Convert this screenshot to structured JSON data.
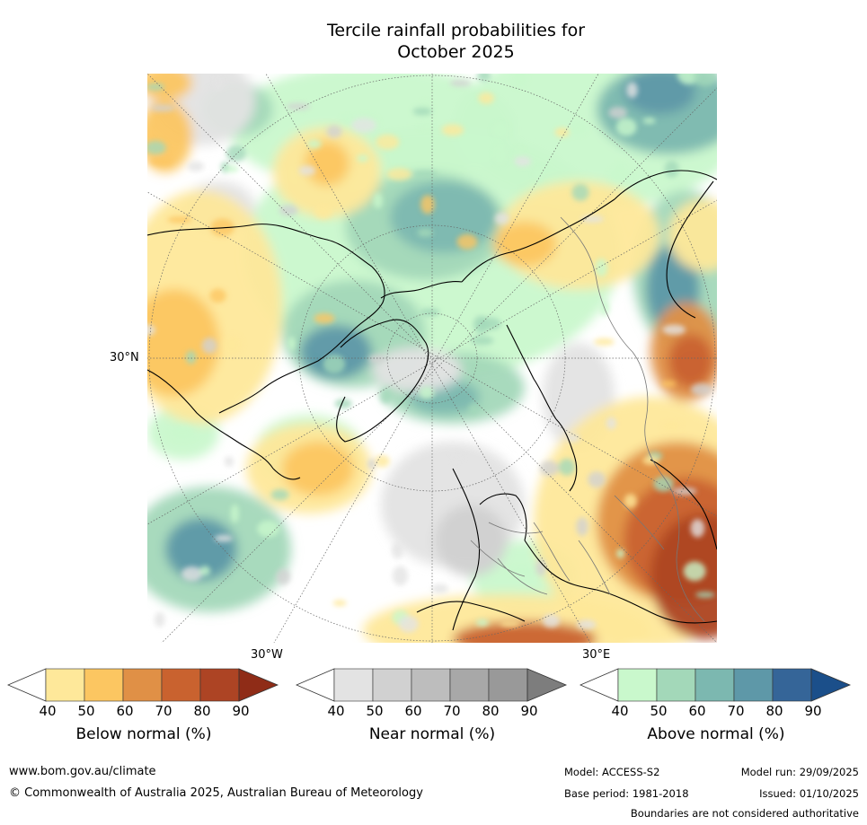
{
  "title_line1": "Tercile rainfall probabilities for",
  "title_line2": "October 2025",
  "map": {
    "lat_label": "30°N",
    "lon_label_left": "30°W",
    "lon_label_right": "30°E",
    "colors": {
      "below": [
        "#ffffff",
        "#fee89a",
        "#fcc661",
        "#e09046",
        "#c9622f",
        "#ad4424",
        "#8f2c17"
      ],
      "near": [
        "#ffffff",
        "#e3e3e3",
        "#d1d1d1",
        "#bdbdbd",
        "#a8a8a8",
        "#999999",
        "#7d7d7d"
      ],
      "above": [
        "#ffffff",
        "#c9f8cc",
        "#a3d8b9",
        "#7cb8b0",
        "#5e98a8",
        "#356598",
        "#1b4f8a"
      ]
    }
  },
  "colorbars": [
    {
      "label": "Below normal (%)",
      "ticks": [
        "40",
        "50",
        "60",
        "70",
        "80",
        "90"
      ]
    },
    {
      "label": "Near normal (%)",
      "ticks": [
        "40",
        "50",
        "60",
        "70",
        "80",
        "90"
      ]
    },
    {
      "label": "Above normal (%)",
      "ticks": [
        "40",
        "50",
        "60",
        "70",
        "80",
        "90"
      ]
    }
  ],
  "footer": {
    "website": "www.bom.gov.au/climate",
    "copyright": "© Commonwealth of Australia 2025, Australian Bureau of Meteorology",
    "model": "Model: ACCESS-S2",
    "base_period": "Base period: 1981-2018",
    "model_run": "Model run: 29/09/2025",
    "issued": "Issued: 01/10/2025",
    "boundaries": "Boundaries are not considered authoritative"
  }
}
